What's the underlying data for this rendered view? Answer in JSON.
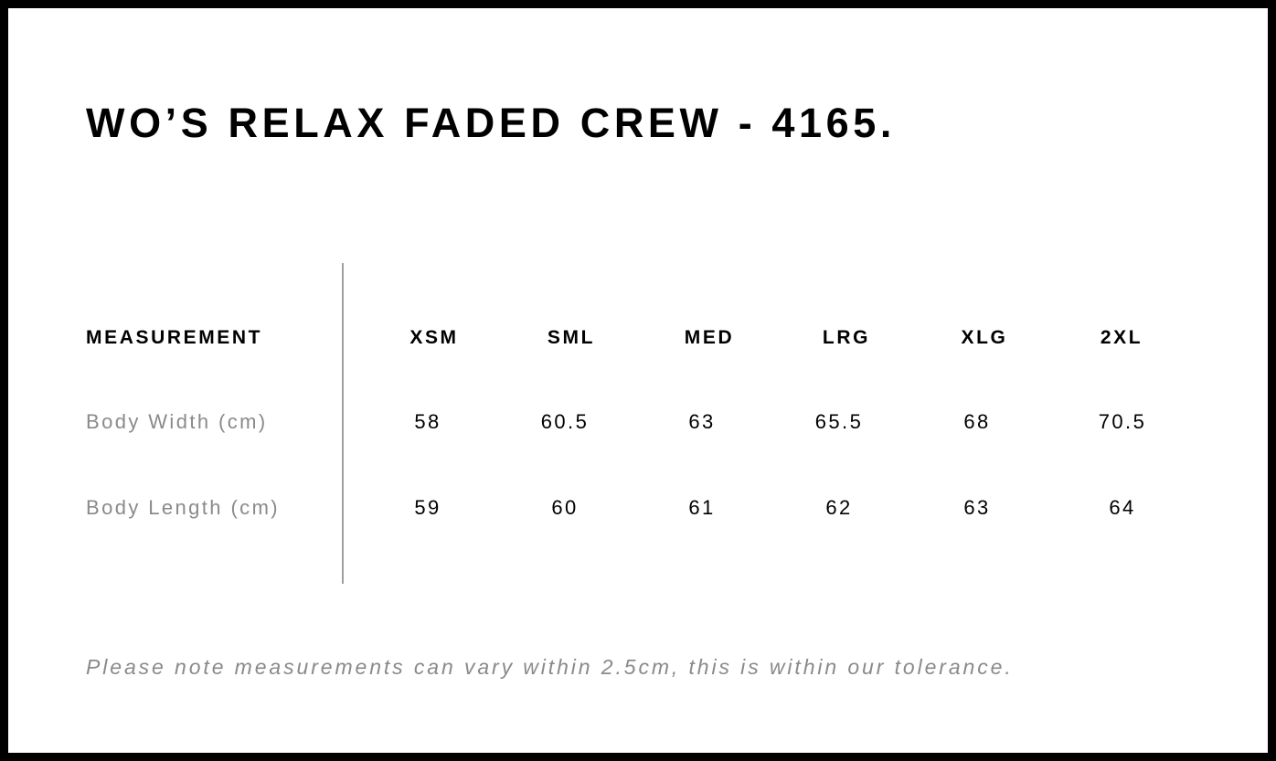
{
  "title": "WO’S RELAX FADED CREW - 4165.",
  "table": {
    "header": {
      "label": "MEASUREMENT",
      "sizes": [
        "XSM",
        "SML",
        "MED",
        "LRG",
        "XLG",
        "2XL"
      ]
    },
    "rows": [
      {
        "label": "Body Width (cm)",
        "values": [
          "58",
          "60.5",
          "63",
          "65.5",
          "68",
          "70.5"
        ]
      },
      {
        "label": "Body Length (cm)",
        "values": [
          "59",
          "60",
          "61",
          "62",
          "63",
          "64"
        ]
      }
    ]
  },
  "note": "Please note measurements can vary within 2.5cm, this is within our tolerance."
}
